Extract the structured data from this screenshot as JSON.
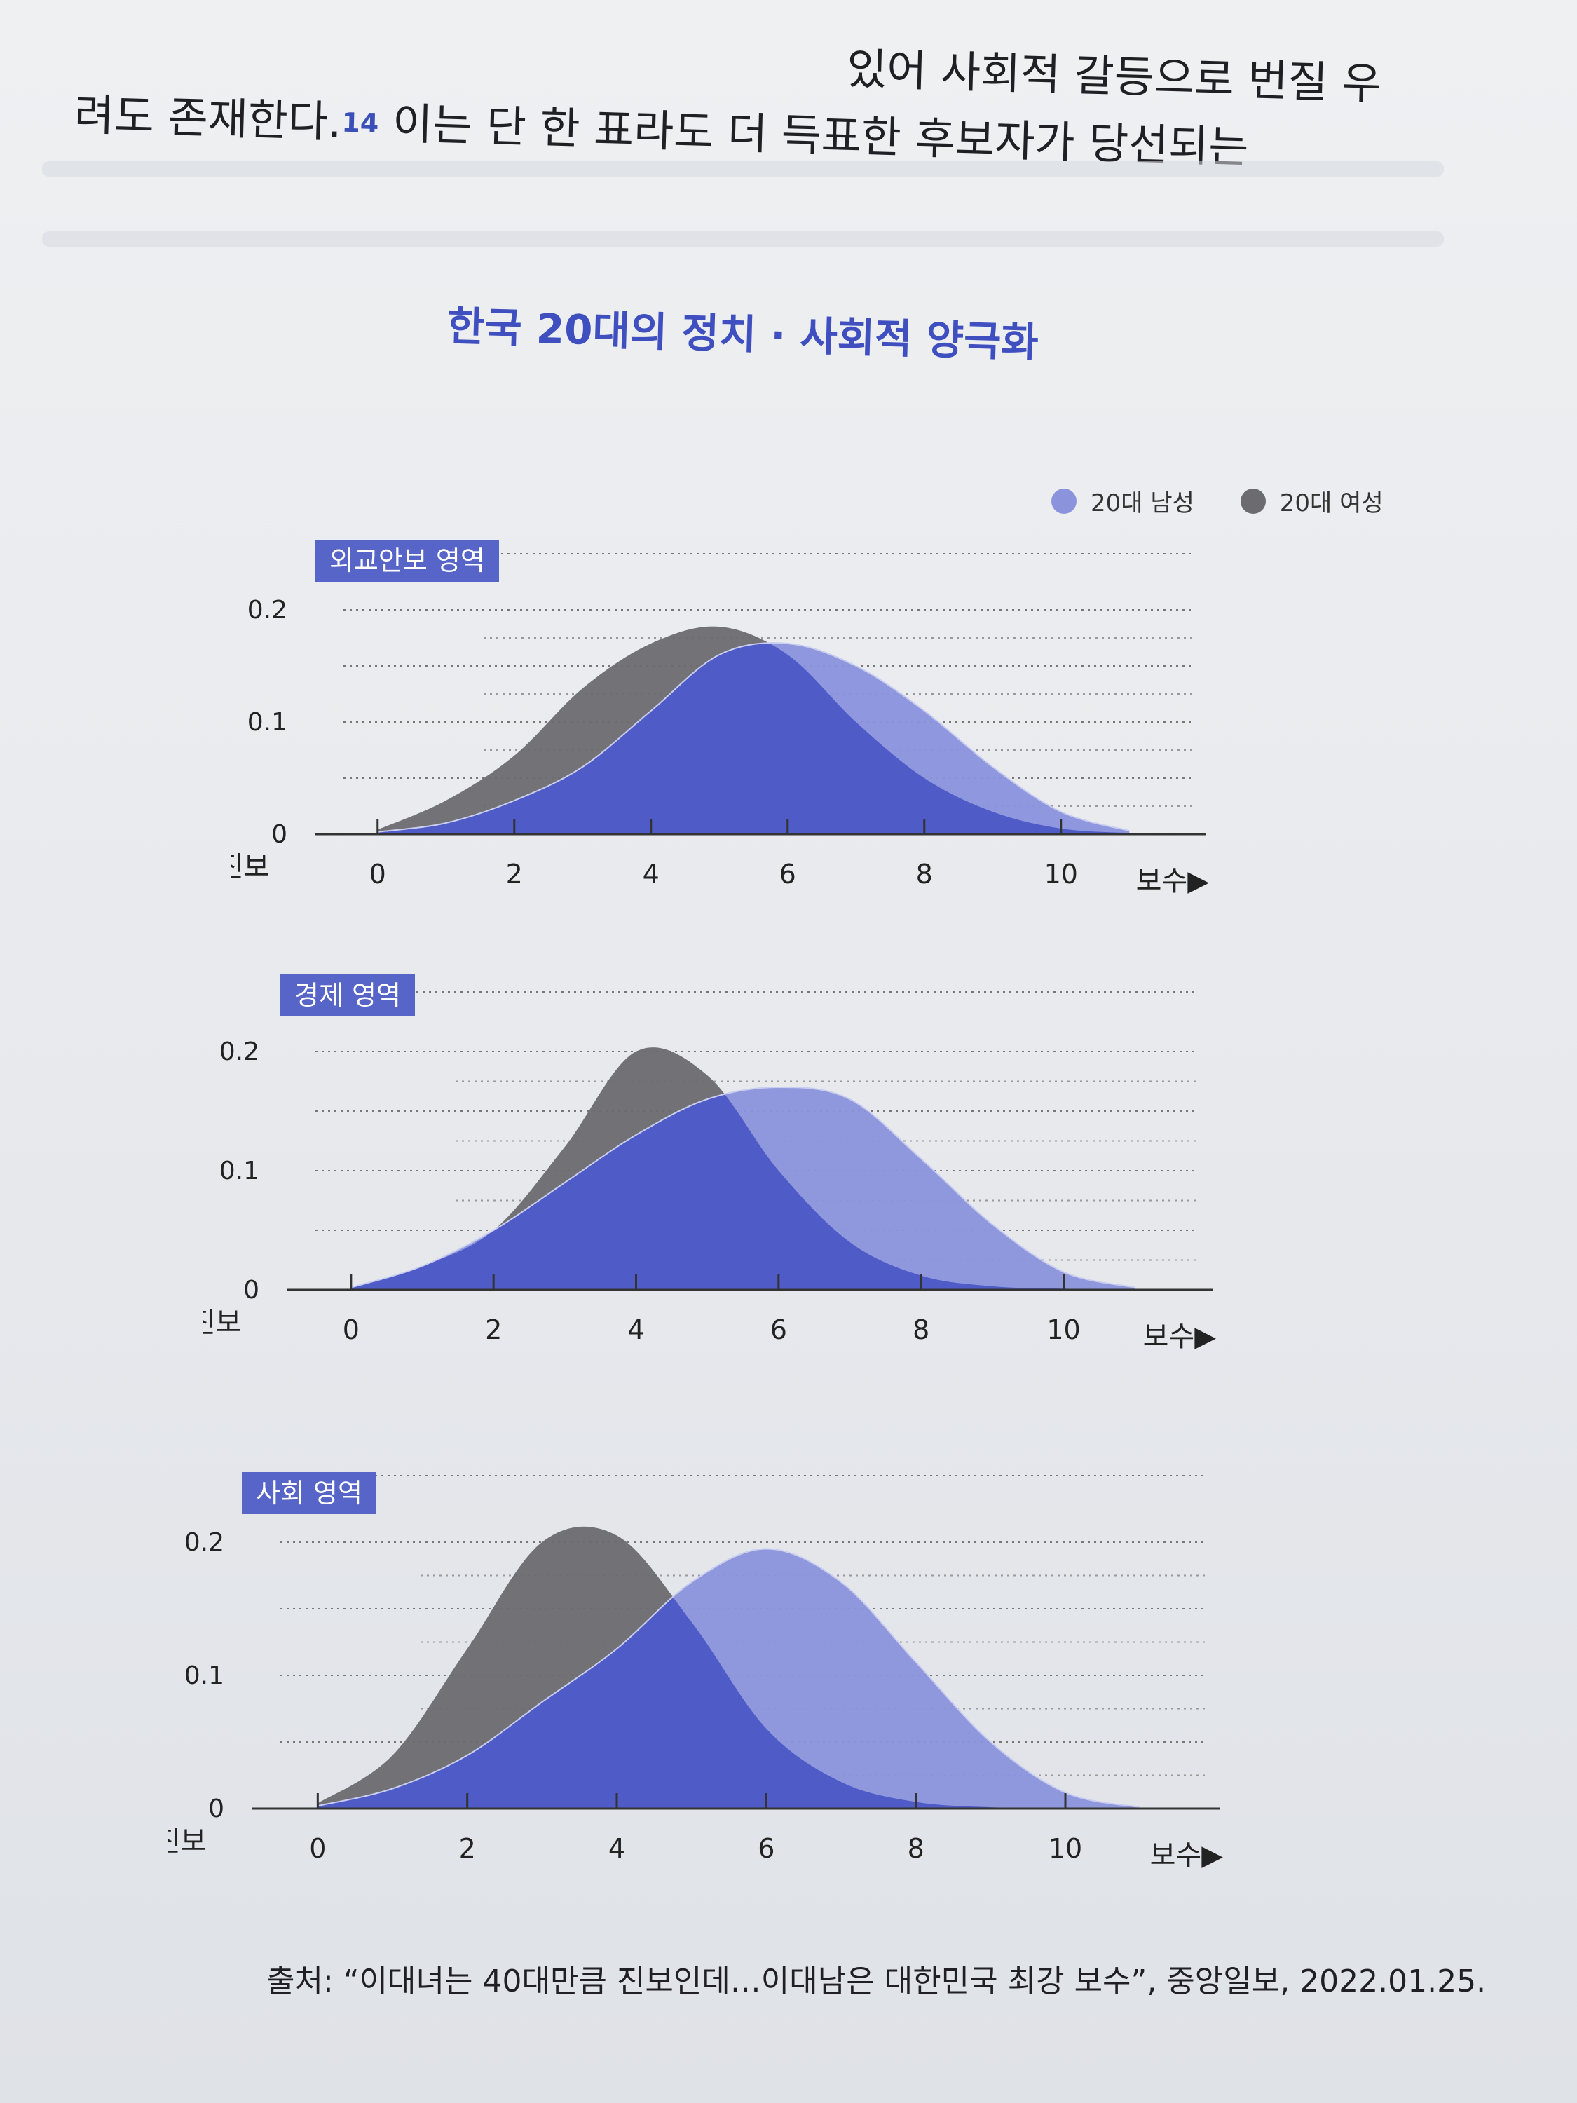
{
  "body_text": {
    "line1": "있어 사회적 갈등으로 번질 우",
    "line2_before": "려도 존재한다.",
    "footnote": "14",
    "line2_after": " 이는 단 한 표라도 더 득표한 후보자가 당선되는"
  },
  "chart_title": "한국 20대의 정치 · 사회적 양극화",
  "legend": [
    {
      "label": "20대 남성",
      "color": "#8a93dc"
    },
    {
      "label": "20대 여성",
      "color": "#6b6b70"
    }
  ],
  "colors": {
    "male": "#8a93dc",
    "female": "#6b6b70",
    "overlap": "#4f5bc7",
    "tag": "#5764c8"
  },
  "source": "출처: “이대녀는 40대만큼 진보인데…이대남은 대한민국 최강 보수”, 중앙일보, 2022.01.25.",
  "chart_data": [
    {
      "type": "area",
      "title": "외교안보 영역",
      "x_ticks": [
        0,
        2,
        4,
        6,
        8,
        10
      ],
      "y_ticks": [
        0,
        0.1,
        0.2
      ],
      "y_tick_labels": [
        "0",
        "0.1",
        "0.2"
      ],
      "x_left_label": "◀진보",
      "x_right_label": "보수▶",
      "xlim": [
        -0.5,
        11.5
      ],
      "ylim": [
        0,
        0.2
      ],
      "series": [
        {
          "name": "20대 남성",
          "x": [
            0,
            1,
            2,
            3,
            4,
            5,
            6,
            7,
            8,
            9,
            10,
            11
          ],
          "values": [
            0.002,
            0.01,
            0.03,
            0.06,
            0.11,
            0.16,
            0.17,
            0.15,
            0.11,
            0.06,
            0.02,
            0.003
          ]
        },
        {
          "name": "20대 여성",
          "x": [
            0,
            1,
            2,
            3,
            4,
            5,
            6,
            7,
            8,
            9,
            10,
            11
          ],
          "values": [
            0.004,
            0.03,
            0.07,
            0.13,
            0.17,
            0.185,
            0.16,
            0.1,
            0.05,
            0.02,
            0.005,
            0.001
          ]
        }
      ]
    },
    {
      "type": "area",
      "title": "경제 영역",
      "x_ticks": [
        0,
        2,
        4,
        6,
        8,
        10
      ],
      "y_ticks": [
        0,
        0.1,
        0.2
      ],
      "y_tick_labels": [
        "0",
        "0.1",
        "0.2"
      ],
      "x_left_label": "◀진보",
      "x_right_label": "보수▶",
      "xlim": [
        -0.5,
        11.5
      ],
      "ylim": [
        0,
        0.2
      ],
      "series": [
        {
          "name": "20대 남성",
          "x": [
            0,
            1,
            2,
            3,
            4,
            5,
            6,
            7,
            8,
            9,
            10,
            11
          ],
          "values": [
            0.002,
            0.02,
            0.05,
            0.09,
            0.13,
            0.16,
            0.17,
            0.16,
            0.11,
            0.055,
            0.015,
            0.002
          ]
        },
        {
          "name": "20대 여성",
          "x": [
            0,
            1,
            2,
            3,
            4,
            5,
            6,
            7,
            8,
            9,
            10,
            11
          ],
          "values": [
            0.002,
            0.02,
            0.05,
            0.12,
            0.2,
            0.18,
            0.1,
            0.04,
            0.012,
            0.003,
            0.001,
            0
          ]
        }
      ]
    },
    {
      "type": "area",
      "title": "사회 영역",
      "x_ticks": [
        0,
        2,
        4,
        6,
        8,
        10
      ],
      "y_ticks": [
        0,
        0.1,
        0.2
      ],
      "y_tick_labels": [
        "0",
        "0.1",
        "0.2"
      ],
      "x_left_label": "◀진보",
      "x_right_label": "보수▶",
      "xlim": [
        -0.5,
        11.5
      ],
      "ylim": [
        0,
        0.2
      ],
      "series": [
        {
          "name": "20대 남성",
          "x": [
            0,
            1,
            2,
            3,
            4,
            5,
            6,
            7,
            8,
            9,
            10,
            11
          ],
          "values": [
            0.002,
            0.015,
            0.04,
            0.08,
            0.12,
            0.17,
            0.195,
            0.17,
            0.11,
            0.05,
            0.012,
            0.001
          ]
        },
        {
          "name": "20대 여성",
          "x": [
            0,
            1,
            2,
            3,
            4,
            5,
            6,
            7,
            8,
            9,
            10,
            11
          ],
          "values": [
            0.004,
            0.04,
            0.12,
            0.2,
            0.205,
            0.14,
            0.06,
            0.02,
            0.005,
            0.001,
            0,
            0
          ]
        }
      ]
    }
  ]
}
